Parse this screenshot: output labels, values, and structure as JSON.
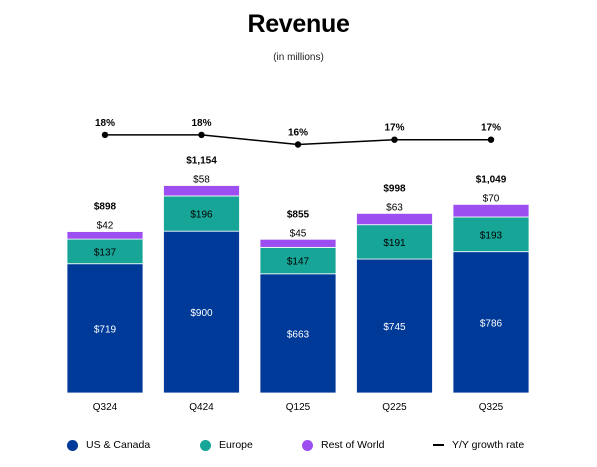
{
  "title": "Revenue",
  "subtitle": "(in millions)",
  "colors": {
    "us_canada": "#003a99",
    "europe": "#16a597",
    "rest_of_world": "#9c4ef0",
    "growth": "#000000"
  },
  "legend": [
    {
      "label": "US & Canada",
      "kind": "swatch",
      "color_key": "us_canada"
    },
    {
      "label": "Europe",
      "kind": "swatch",
      "color_key": "europe"
    },
    {
      "label": "Rest of World",
      "kind": "swatch",
      "color_key": "rest_of_world"
    },
    {
      "label": "Y/Y growth rate",
      "kind": "line",
      "color_key": "growth"
    }
  ],
  "chart_data": {
    "type": "bar",
    "stacked": true,
    "title": "Revenue",
    "subtitle": "(in millions)",
    "categories": [
      "Q324",
      "Q424",
      "Q125",
      "Q225",
      "Q325"
    ],
    "series": [
      {
        "name": "US & Canada",
        "values": [
          719,
          900,
          663,
          745,
          786
        ],
        "labels": [
          "$719",
          "$900",
          "$663",
          "$745",
          "$786"
        ]
      },
      {
        "name": "Europe",
        "values": [
          137,
          196,
          147,
          191,
          193
        ],
        "labels": [
          "$137",
          "$196",
          "$147",
          "$191",
          "$193"
        ]
      },
      {
        "name": "Rest of World",
        "values": [
          42,
          58,
          45,
          63,
          70
        ],
        "labels": [
          "$42",
          "$58",
          "$45",
          "$63",
          "$70"
        ]
      }
    ],
    "totals": [
      898,
      1154,
      855,
      998,
      1049
    ],
    "total_labels": [
      "$898",
      "$1,154",
      "$855",
      "$998",
      "$1,049"
    ],
    "growth": {
      "name": "Y/Y growth rate",
      "values": [
        18,
        18,
        16,
        17,
        17
      ],
      "labels": [
        "18%",
        "18%",
        "16%",
        "17%",
        "17%"
      ]
    },
    "ylim": [
      0,
      1200
    ],
    "grid": false,
    "legend_position": "bottom"
  }
}
